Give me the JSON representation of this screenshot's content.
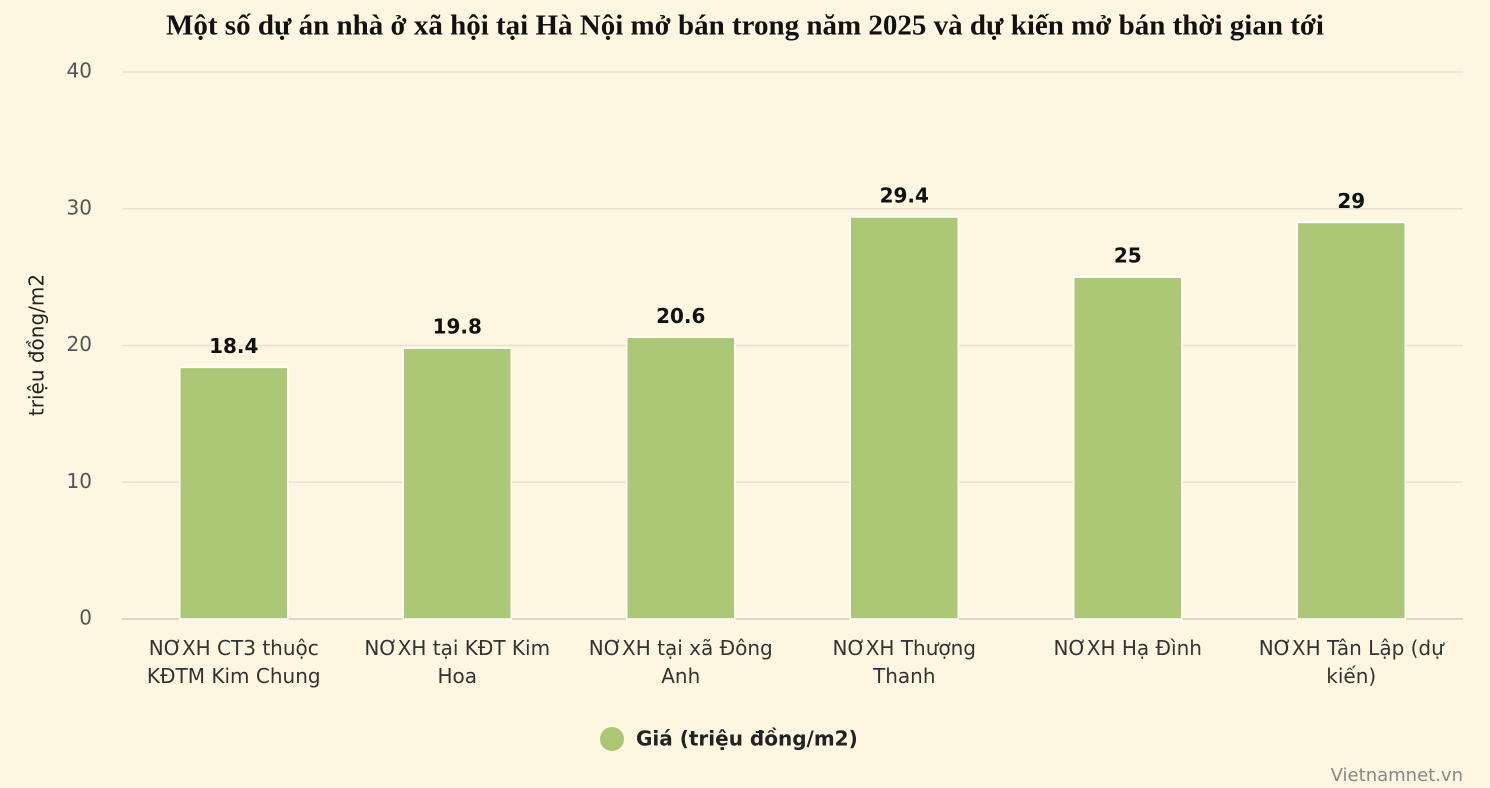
{
  "chart_data": {
    "type": "bar",
    "title": "Một số dự án nhà ở xã hội tại Hà Nội mở bán trong năm 2025 và dự kiến mở bán thời gian tới",
    "y_label": "triệu đồng/m2",
    "categories": [
      "NƠXH CT3 thuộc KĐTM Kim Chung",
      "NƠXH tại KĐT Kim Hoa",
      "NƠXH tại xã Đông Anh",
      "NƠXH Thượng Thanh",
      "NƠXH Hạ Đình",
      "NƠXH Tân Lập (dự kiến)"
    ],
    "series": [
      {
        "name": "Giá (triệu đồng/m2)",
        "color": "#acc776",
        "values": [
          18.4,
          19.8,
          20.6,
          29.4,
          25,
          29
        ]
      }
    ],
    "ylim": [
      0,
      40
    ],
    "yticks": [
      0,
      10,
      20,
      30,
      40
    ],
    "grid": true,
    "source": "Vietnamnet.vn"
  }
}
